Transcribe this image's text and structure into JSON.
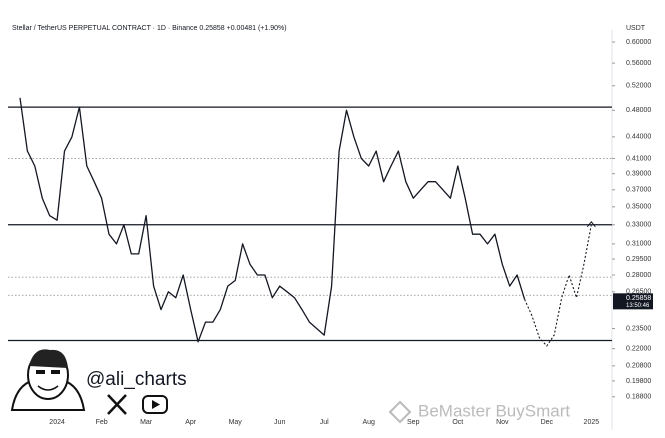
{
  "chart_data": {
    "type": "line",
    "title": "Stellar / TetherUS PERPETUAL CONTRACT · 1D · Binance  0.25858  +0.00481 (+1.90%)",
    "currency": "USDT",
    "price_label": "0.25858",
    "countdown": "13:50:46",
    "handle": "@ali_charts",
    "watermark": "BeMaster BuySmart",
    "color": "#131722",
    "log_scale": true,
    "categories": [
      null,
      null,
      null,
      null,
      null,
      "2024",
      null,
      null,
      null,
      null,
      null,
      "Feb",
      null,
      null,
      null,
      null,
      null,
      "Mar",
      null,
      null,
      null,
      null,
      null,
      "Apr",
      null,
      null,
      null,
      null,
      null,
      "May",
      null,
      null,
      null,
      null,
      null,
      "Jun",
      null,
      null,
      null,
      null,
      null,
      "Jul",
      null,
      null,
      null,
      null,
      null,
      "Aug",
      null,
      null,
      null,
      null,
      null,
      "Sep",
      null,
      null,
      null,
      null,
      null,
      "Oct",
      null,
      null,
      null,
      null,
      null,
      "Nov",
      null,
      null,
      null,
      null,
      null,
      "Dec",
      null,
      null,
      null,
      null,
      null,
      "2025"
    ],
    "values": [
      0.5,
      0.42,
      0.4,
      0.36,
      0.34,
      0.335,
      0.42,
      0.44,
      0.485,
      0.4,
      0.38,
      0.36,
      0.32,
      0.31,
      0.33,
      0.3,
      0.3,
      0.34,
      0.27,
      0.25,
      0.265,
      0.26,
      0.28,
      0.25,
      0.225,
      0.24,
      0.24,
      0.25,
      0.27,
      0.275,
      0.31,
      0.29,
      0.28,
      0.28,
      0.26,
      0.27,
      0.265,
      0.26,
      0.25,
      0.24,
      0.235,
      0.23,
      0.27,
      0.42,
      0.48,
      0.44,
      0.41,
      0.4,
      0.42,
      0.38,
      0.4,
      0.42,
      0.38,
      0.36,
      0.37,
      0.38,
      0.38,
      0.37,
      0.36,
      0.4,
      0.36,
      0.32,
      0.32,
      0.31,
      0.32,
      0.29,
      0.27,
      0.28,
      0.25858,
      null,
      null,
      null,
      null,
      null,
      null,
      null,
      null,
      null
    ],
    "projection": [
      null,
      null,
      null,
      null,
      null,
      null,
      null,
      null,
      null,
      null,
      null,
      null,
      null,
      null,
      null,
      null,
      null,
      null,
      null,
      null,
      null,
      null,
      null,
      null,
      null,
      null,
      null,
      null,
      null,
      null,
      null,
      null,
      null,
      null,
      null,
      null,
      null,
      null,
      null,
      null,
      null,
      null,
      null,
      null,
      null,
      null,
      null,
      null,
      null,
      null,
      null,
      null,
      null,
      null,
      null,
      null,
      null,
      null,
      null,
      null,
      null,
      null,
      null,
      null,
      null,
      null,
      null,
      null,
      0.25858,
      0.245,
      0.228,
      0.222,
      0.23,
      0.26,
      0.28,
      0.26,
      0.29,
      0.33
    ],
    "levels": [
      0.485,
      0.33,
      0.226
    ],
    "dotted_levels": [
      0.41,
      0.278,
      0.262
    ],
    "ylim": [
      0.183,
      0.614
    ],
    "yticks": [
      {
        "value": 0.6,
        "label": "0.60000"
      },
      {
        "value": 0.56,
        "label": "0.56000"
      },
      {
        "value": 0.52,
        "label": "0.52000"
      },
      {
        "value": 0.48,
        "label": "0.48000"
      },
      {
        "value": 0.44,
        "label": "0.44000"
      },
      {
        "value": 0.41,
        "label": "0.41000"
      },
      {
        "value": 0.39,
        "label": "0.39000"
      },
      {
        "value": 0.37,
        "label": "0.37000"
      },
      {
        "value": 0.35,
        "label": "0.35000"
      },
      {
        "value": 0.33,
        "label": "0.33000"
      },
      {
        "value": 0.31,
        "label": "0.31000"
      },
      {
        "value": 0.295,
        "label": "0.29500"
      },
      {
        "value": 0.28,
        "label": "0.28000"
      },
      {
        "value": 0.265,
        "label": "0.26500"
      },
      {
        "value": 0.235,
        "label": "0.23500"
      },
      {
        "value": 0.22,
        "label": "0.22000"
      },
      {
        "value": 0.208,
        "label": "0.20800"
      },
      {
        "value": 0.198,
        "label": "0.19800"
      },
      {
        "value": 0.188,
        "label": "0.18800"
      }
    ]
  }
}
